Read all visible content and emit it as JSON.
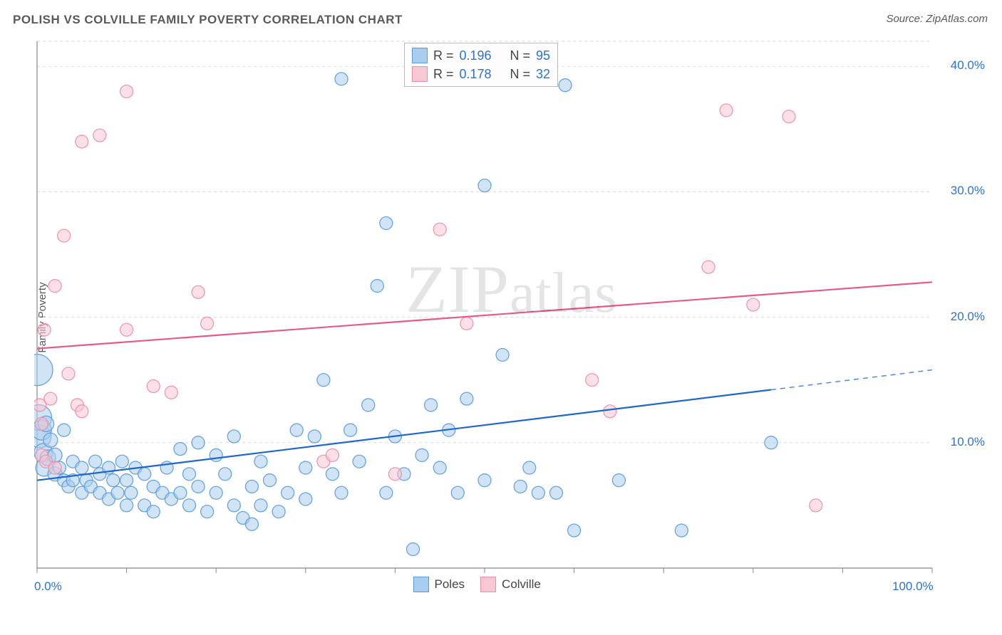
{
  "title": "POLISH VS COLVILLE FAMILY POVERTY CORRELATION CHART",
  "source": "Source: ZipAtlas.com",
  "ylabel": "Family Poverty",
  "watermark": "ZIPatlas",
  "chart": {
    "type": "scatter",
    "xlim": [
      0,
      100
    ],
    "ylim": [
      0,
      42
    ],
    "ytick_vals": [
      10,
      20,
      30,
      40
    ],
    "ytick_labels": [
      "10.0%",
      "20.0%",
      "30.0%",
      "40.0%"
    ],
    "xtick_vals": [
      0,
      10,
      20,
      30,
      40,
      50,
      60,
      70,
      80,
      90,
      100
    ],
    "xtick_left_label": "0.0%",
    "xtick_right_label": "100.0%",
    "grid_color": "#d9d9d9",
    "axis_color": "#888888",
    "background_color": "#ffffff",
    "series": [
      {
        "name": "Poles",
        "color_fill": "#a9cdef",
        "color_stroke": "#5a9bdc",
        "marker_opacity": 0.55,
        "trend": {
          "color": "#1e66d0",
          "y_at_x0": 7.0,
          "y_at_x100": 15.8,
          "solid_until_x": 82,
          "width": 2.2
        },
        "points": [
          {
            "x": 0,
            "y": 15.8,
            "r": 22
          },
          {
            "x": 0.2,
            "y": 12.0,
            "r": 18
          },
          {
            "x": 0.3,
            "y": 10.5,
            "r": 16
          },
          {
            "x": 0.5,
            "y": 11.0,
            "r": 14
          },
          {
            "x": 0.7,
            "y": 9.2,
            "r": 13
          },
          {
            "x": 0.8,
            "y": 8.0,
            "r": 12
          },
          {
            "x": 1,
            "y": 11.5,
            "r": 11
          },
          {
            "x": 1.2,
            "y": 8.8,
            "r": 11
          },
          {
            "x": 1.5,
            "y": 10.2,
            "r": 10
          },
          {
            "x": 2,
            "y": 7.5,
            "r": 10
          },
          {
            "x": 2,
            "y": 9.0,
            "r": 10
          },
          {
            "x": 2.5,
            "y": 8.0,
            "r": 9
          },
          {
            "x": 3,
            "y": 11.0,
            "r": 9
          },
          {
            "x": 3,
            "y": 7.0,
            "r": 9
          },
          {
            "x": 3.5,
            "y": 6.5,
            "r": 9
          },
          {
            "x": 4,
            "y": 8.5,
            "r": 9
          },
          {
            "x": 4,
            "y": 7.0,
            "r": 9
          },
          {
            "x": 5,
            "y": 6.0,
            "r": 9
          },
          {
            "x": 5,
            "y": 8.0,
            "r": 9
          },
          {
            "x": 5.5,
            "y": 7.0,
            "r": 9
          },
          {
            "x": 6,
            "y": 6.5,
            "r": 9
          },
          {
            "x": 6.5,
            "y": 8.5,
            "r": 9
          },
          {
            "x": 7,
            "y": 6.0,
            "r": 9
          },
          {
            "x": 7,
            "y": 7.5,
            "r": 9
          },
          {
            "x": 8,
            "y": 8.0,
            "r": 9
          },
          {
            "x": 8,
            "y": 5.5,
            "r": 9
          },
          {
            "x": 8.5,
            "y": 7.0,
            "r": 9
          },
          {
            "x": 9,
            "y": 6.0,
            "r": 9
          },
          {
            "x": 9.5,
            "y": 8.5,
            "r": 9
          },
          {
            "x": 10,
            "y": 5.0,
            "r": 9
          },
          {
            "x": 10,
            "y": 7.0,
            "r": 9
          },
          {
            "x": 10.5,
            "y": 6.0,
            "r": 9
          },
          {
            "x": 11,
            "y": 8.0,
            "r": 9
          },
          {
            "x": 12,
            "y": 5.0,
            "r": 9
          },
          {
            "x": 12,
            "y": 7.5,
            "r": 9
          },
          {
            "x": 13,
            "y": 6.5,
            "r": 9
          },
          {
            "x": 13,
            "y": 4.5,
            "r": 9
          },
          {
            "x": 14,
            "y": 6.0,
            "r": 9
          },
          {
            "x": 14.5,
            "y": 8.0,
            "r": 9
          },
          {
            "x": 15,
            "y": 5.5,
            "r": 9
          },
          {
            "x": 16,
            "y": 9.5,
            "r": 9
          },
          {
            "x": 16,
            "y": 6.0,
            "r": 9
          },
          {
            "x": 17,
            "y": 7.5,
            "r": 9
          },
          {
            "x": 17,
            "y": 5.0,
            "r": 9
          },
          {
            "x": 18,
            "y": 10.0,
            "r": 9
          },
          {
            "x": 18,
            "y": 6.5,
            "r": 9
          },
          {
            "x": 19,
            "y": 4.5,
            "r": 9
          },
          {
            "x": 20,
            "y": 9.0,
            "r": 9
          },
          {
            "x": 20,
            "y": 6.0,
            "r": 9
          },
          {
            "x": 21,
            "y": 7.5,
            "r": 9
          },
          {
            "x": 22,
            "y": 10.5,
            "r": 9
          },
          {
            "x": 22,
            "y": 5.0,
            "r": 9
          },
          {
            "x": 23,
            "y": 4.0,
            "r": 9
          },
          {
            "x": 24,
            "y": 6.5,
            "r": 9
          },
          {
            "x": 24,
            "y": 3.5,
            "r": 9
          },
          {
            "x": 25,
            "y": 8.5,
            "r": 9
          },
          {
            "x": 25,
            "y": 5.0,
            "r": 9
          },
          {
            "x": 26,
            "y": 7.0,
            "r": 9
          },
          {
            "x": 27,
            "y": 4.5,
            "r": 9
          },
          {
            "x": 28,
            "y": 6.0,
            "r": 9
          },
          {
            "x": 29,
            "y": 11.0,
            "r": 9
          },
          {
            "x": 30,
            "y": 5.5,
            "r": 9
          },
          {
            "x": 30,
            "y": 8.0,
            "r": 9
          },
          {
            "x": 31,
            "y": 10.5,
            "r": 9
          },
          {
            "x": 32,
            "y": 15.0,
            "r": 9
          },
          {
            "x": 33,
            "y": 7.5,
            "r": 9
          },
          {
            "x": 34,
            "y": 39.0,
            "r": 9
          },
          {
            "x": 34,
            "y": 6.0,
            "r": 9
          },
          {
            "x": 35,
            "y": 11.0,
            "r": 9
          },
          {
            "x": 36,
            "y": 8.5,
            "r": 9
          },
          {
            "x": 37,
            "y": 13.0,
            "r": 9
          },
          {
            "x": 38,
            "y": 22.5,
            "r": 9
          },
          {
            "x": 39,
            "y": 27.5,
            "r": 9
          },
          {
            "x": 39,
            "y": 6.0,
            "r": 9
          },
          {
            "x": 40,
            "y": 10.5,
            "r": 9
          },
          {
            "x": 41,
            "y": 7.5,
            "r": 9
          },
          {
            "x": 42,
            "y": 1.5,
            "r": 9
          },
          {
            "x": 43,
            "y": 9.0,
            "r": 9
          },
          {
            "x": 44,
            "y": 13.0,
            "r": 9
          },
          {
            "x": 45,
            "y": 8.0,
            "r": 9
          },
          {
            "x": 46,
            "y": 11.0,
            "r": 9
          },
          {
            "x": 47,
            "y": 6.0,
            "r": 9
          },
          {
            "x": 48,
            "y": 13.5,
            "r": 9
          },
          {
            "x": 50,
            "y": 30.5,
            "r": 9
          },
          {
            "x": 50,
            "y": 7.0,
            "r": 9
          },
          {
            "x": 52,
            "y": 17.0,
            "r": 9
          },
          {
            "x": 54,
            "y": 6.5,
            "r": 9
          },
          {
            "x": 55,
            "y": 8.0,
            "r": 9
          },
          {
            "x": 56,
            "y": 6.0,
            "r": 9
          },
          {
            "x": 58,
            "y": 6.0,
            "r": 9
          },
          {
            "x": 59,
            "y": 38.5,
            "r": 9
          },
          {
            "x": 60,
            "y": 3.0,
            "r": 9
          },
          {
            "x": 65,
            "y": 7.0,
            "r": 9
          },
          {
            "x": 72,
            "y": 3.0,
            "r": 9
          },
          {
            "x": 82,
            "y": 10.0,
            "r": 9
          }
        ]
      },
      {
        "name": "Colville",
        "color_fill": "#f7c7d4",
        "color_stroke": "#e98fab",
        "marker_opacity": 0.55,
        "trend": {
          "color": "#e65a8a",
          "y_at_x0": 17.5,
          "y_at_x100": 22.8,
          "solid_until_x": 100,
          "width": 2.2
        },
        "points": [
          {
            "x": 0.3,
            "y": 13.0,
            "r": 9
          },
          {
            "x": 0.5,
            "y": 11.5,
            "r": 9
          },
          {
            "x": 0.5,
            "y": 9.0,
            "r": 9
          },
          {
            "x": 0.8,
            "y": 19.0,
            "r": 9
          },
          {
            "x": 1.0,
            "y": 8.5,
            "r": 9
          },
          {
            "x": 1.5,
            "y": 13.5,
            "r": 9
          },
          {
            "x": 2,
            "y": 22.5,
            "r": 9
          },
          {
            "x": 2,
            "y": 8.0,
            "r": 9
          },
          {
            "x": 3,
            "y": 26.5,
            "r": 9
          },
          {
            "x": 3.5,
            "y": 15.5,
            "r": 9
          },
          {
            "x": 4.5,
            "y": 13.0,
            "r": 9
          },
          {
            "x": 5,
            "y": 34.0,
            "r": 9
          },
          {
            "x": 5,
            "y": 12.5,
            "r": 9
          },
          {
            "x": 7,
            "y": 34.5,
            "r": 9
          },
          {
            "x": 10,
            "y": 19.0,
            "r": 9
          },
          {
            "x": 10,
            "y": 38.0,
            "r": 9
          },
          {
            "x": 13,
            "y": 14.5,
            "r": 9
          },
          {
            "x": 15,
            "y": 14.0,
            "r": 9
          },
          {
            "x": 18,
            "y": 22.0,
            "r": 9
          },
          {
            "x": 19,
            "y": 19.5,
            "r": 9
          },
          {
            "x": 32,
            "y": 8.5,
            "r": 9
          },
          {
            "x": 33,
            "y": 9.0,
            "r": 9
          },
          {
            "x": 40,
            "y": 7.5,
            "r": 9
          },
          {
            "x": 45,
            "y": 27.0,
            "r": 9
          },
          {
            "x": 48,
            "y": 19.5,
            "r": 9
          },
          {
            "x": 62,
            "y": 15.0,
            "r": 9
          },
          {
            "x": 64,
            "y": 12.5,
            "r": 9
          },
          {
            "x": 75,
            "y": 24.0,
            "r": 9
          },
          {
            "x": 77,
            "y": 36.5,
            "r": 9
          },
          {
            "x": 80,
            "y": 21.0,
            "r": 9
          },
          {
            "x": 84,
            "y": 36.0,
            "r": 9
          },
          {
            "x": 87,
            "y": 5.0,
            "r": 9
          }
        ]
      }
    ],
    "legend_top": {
      "rows": [
        {
          "swatch_fill": "#a9cdef",
          "swatch_stroke": "#5a9bdc",
          "r_label": "R =",
          "r_val": "0.196",
          "n_label": "N =",
          "n_val": "95"
        },
        {
          "swatch_fill": "#f7c7d4",
          "swatch_stroke": "#e98fab",
          "r_label": "R =",
          "r_val": "0.178",
          "n_label": "N =",
          "n_val": "32"
        }
      ]
    },
    "legend_bottom": {
      "items": [
        {
          "swatch_fill": "#a9cdef",
          "swatch_stroke": "#5a9bdc",
          "label": "Poles"
        },
        {
          "swatch_fill": "#f7c7d4",
          "swatch_stroke": "#e98fab",
          "label": "Colville"
        }
      ]
    }
  }
}
